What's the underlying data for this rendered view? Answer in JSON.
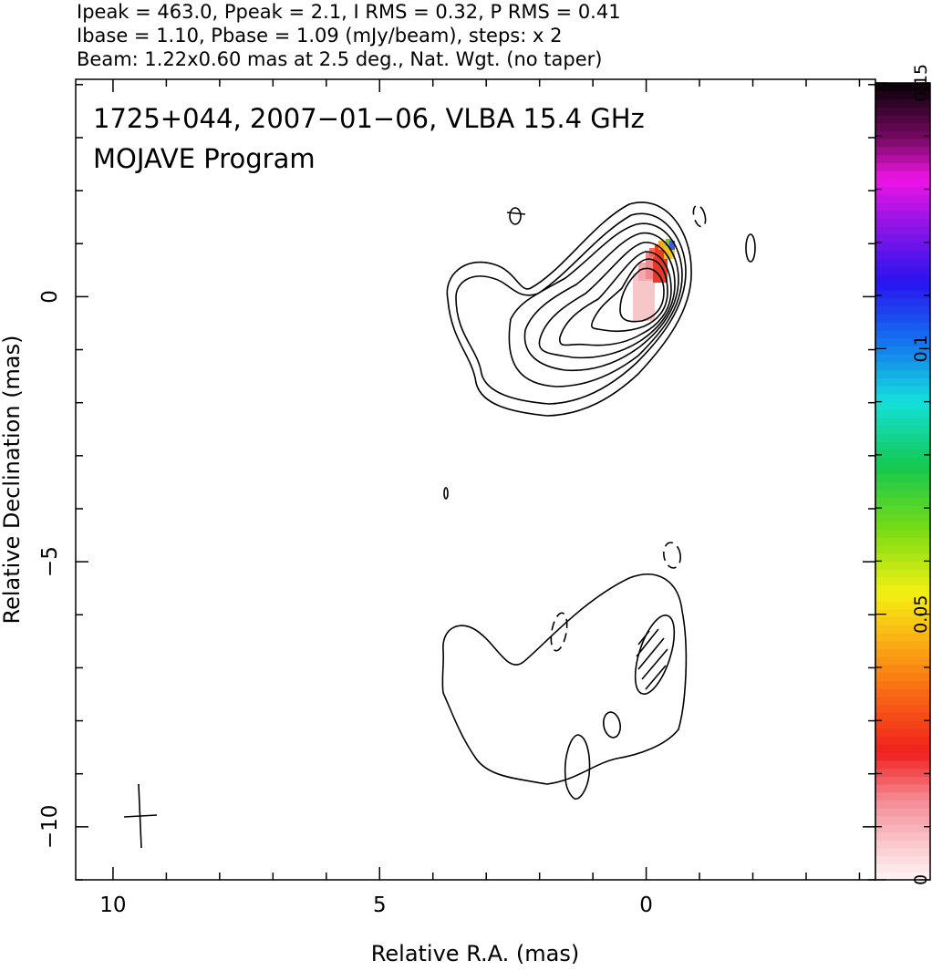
{
  "header": {
    "line1": "Ipeak = 463.0, Ppeak = 2.1, I RMS = 0.32, P RMS = 0.41",
    "line2": "Ibase = 1.10, Pbase = 1.09 (mJy/beam), steps: x 2",
    "line3": "Beam: 1.22x0.60 mas at 2.5 deg., Nat. Wgt. (no taper)"
  },
  "title": {
    "line1": "1725+044, 2007−01−06, VLBA 15.4 GHz",
    "line2": "MOJAVE Program"
  },
  "axes": {
    "xlabel": "Relative R.A. (mas)",
    "ylabel": "Relative Declination (mas)",
    "xlim": [
      10.7,
      -4.3
    ],
    "ylim": [
      -11.0,
      4.1
    ],
    "xticks": [
      10,
      5,
      0
    ],
    "xtick_labels": [
      "10",
      "5",
      "0"
    ],
    "yticks": [
      0,
      -5,
      -10
    ],
    "ytick_labels": [
      "0",
      "−5",
      "−10"
    ]
  },
  "colorbar": {
    "range": [
      0,
      0.15
    ],
    "ticks": [
      0,
      0.05,
      0.1,
      0.15
    ],
    "tick_labels": [
      "0",
      "0.05",
      "0.1",
      "0.15"
    ],
    "colormap": "white-pink-red-orange-yellow-green-cyan-blue-purple-magenta-black"
  },
  "chart_data": {
    "type": "contour",
    "source": "1725+044",
    "date": "2007-01-06",
    "instrument": "VLBA 15.4 GHz",
    "program": "MOJAVE Program",
    "ipeak_mJy_per_beam": 463.0,
    "ppeak_mJy_per_beam": 2.1,
    "i_rms": 0.32,
    "p_rms": 0.41,
    "ibase_mJy_per_beam": 1.1,
    "pbase_mJy_per_beam": 1.09,
    "contour_step_factor": 2,
    "beam": {
      "major_mas": 1.22,
      "minor_mas": 0.6,
      "pa_deg": 2.5,
      "weighting": "Nat. Wgt. (no taper)"
    },
    "core_component": {
      "ra_mas": 0.0,
      "dec_mas": 0.0,
      "peak_mJy": 463.0
    },
    "jet_extension": {
      "ra_range_mas": [
        3.8,
        -0.9
      ],
      "dec_range_mas": [
        -2.2,
        1.7
      ]
    },
    "southern_component": {
      "ra_range_mas": [
        3.9,
        -0.7
      ],
      "dec_range_mas": [
        -9.2,
        -5.2
      ]
    },
    "polarization_peak_mJy": 2.1,
    "colorbar_label_range": [
      0,
      0.15
    ]
  }
}
